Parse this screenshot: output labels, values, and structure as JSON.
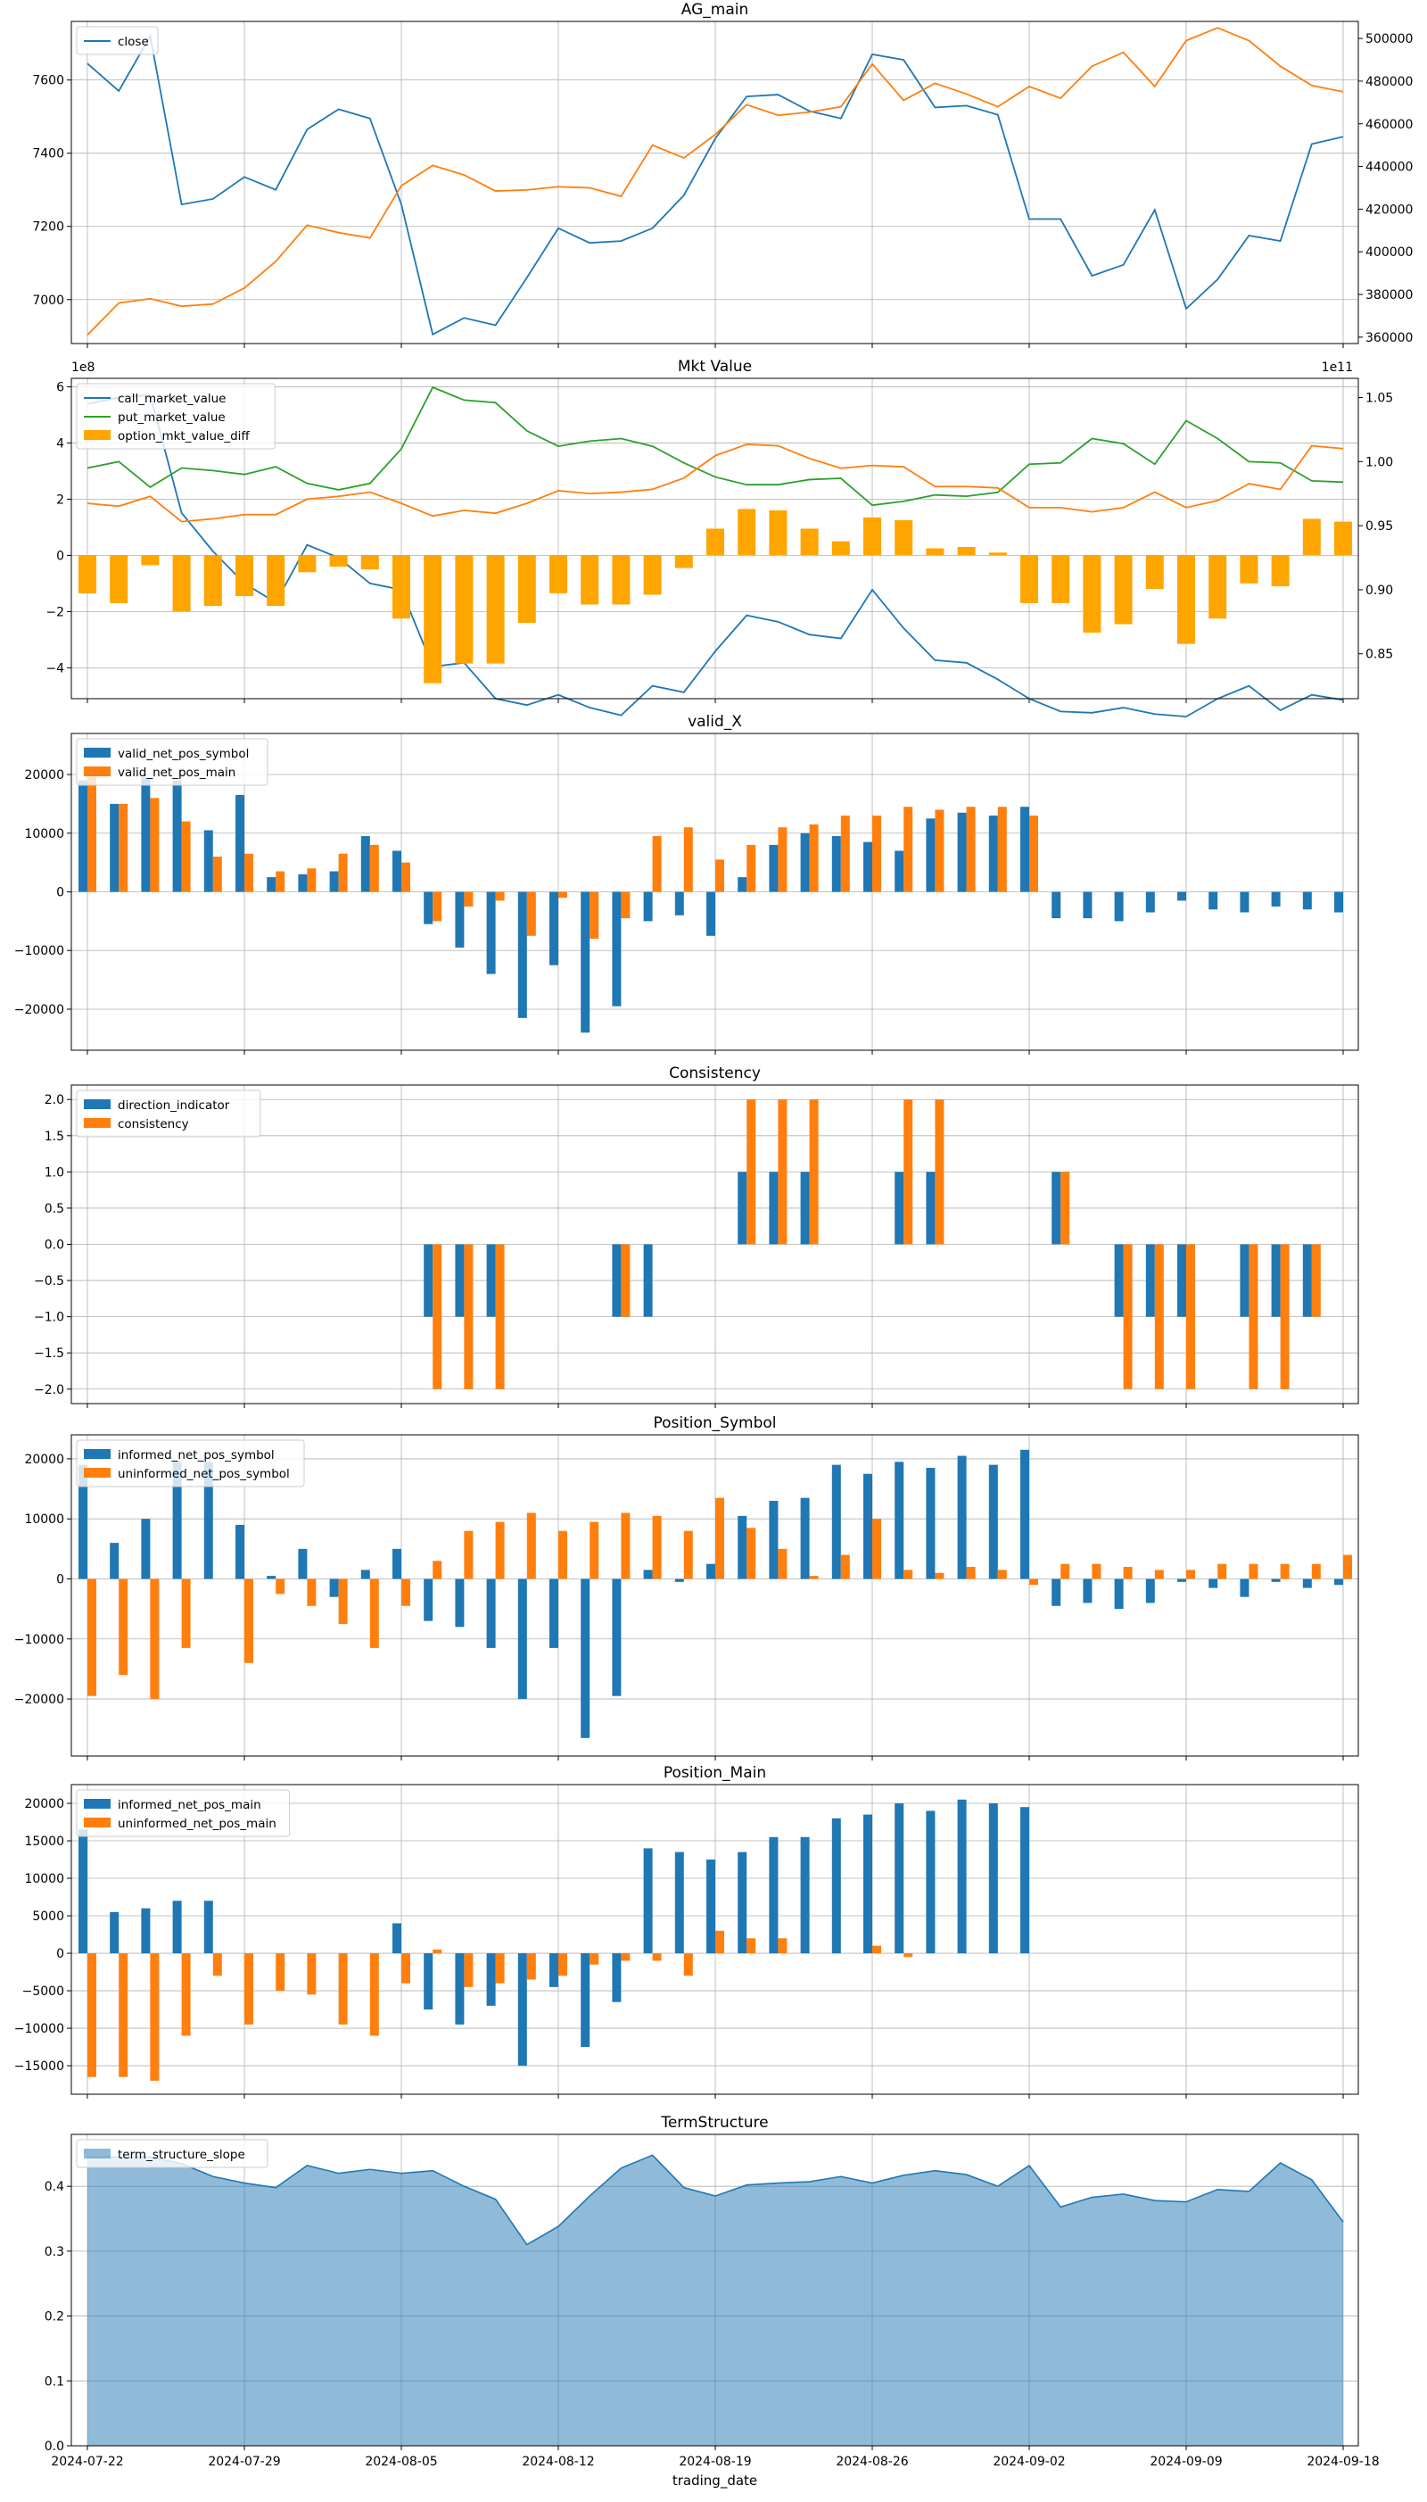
{
  "figure": {
    "xlabel": "trading_date",
    "x_tick_labels": [
      "2024-07-22",
      "2024-07-29",
      "2024-08-05",
      "2024-08-12",
      "2024-08-19",
      "2024-08-26",
      "2024-09-02",
      "2024-09-09",
      "2024-09-18"
    ]
  },
  "chart_data": [
    {
      "type": "line",
      "title": "AG_main",
      "x": [
        "2024-07-22",
        "2024-07-23",
        "2024-07-24",
        "2024-07-25",
        "2024-07-26",
        "2024-07-29",
        "2024-07-30",
        "2024-07-31",
        "2024-08-01",
        "2024-08-02",
        "2024-08-05",
        "2024-08-06",
        "2024-08-07",
        "2024-08-08",
        "2024-08-09",
        "2024-08-12",
        "2024-08-13",
        "2024-08-14",
        "2024-08-15",
        "2024-08-16",
        "2024-08-19",
        "2024-08-20",
        "2024-08-21",
        "2024-08-22",
        "2024-08-23",
        "2024-08-26",
        "2024-08-27",
        "2024-08-28",
        "2024-08-29",
        "2024-08-30",
        "2024-09-02",
        "2024-09-03",
        "2024-09-04",
        "2024-09-05",
        "2024-09-06",
        "2024-09-09",
        "2024-09-10",
        "2024-09-11",
        "2024-09-12",
        "2024-09-13",
        "2024-09-18"
      ],
      "series": [
        {
          "name": "close",
          "axis": "left",
          "color": "#1f77b4",
          "values": [
            7645,
            7570,
            7720,
            7260,
            7275,
            7335,
            7300,
            7465,
            7520,
            7495,
            7260,
            6905,
            6950,
            6930,
            7060,
            7195,
            7155,
            7160,
            7195,
            7285,
            7440,
            7555,
            7560,
            7515,
            7495,
            7670,
            7655,
            7525,
            7530,
            7505,
            7220,
            7220,
            7065,
            7095,
            7245,
            6975,
            7055,
            7175,
            7160,
            7425,
            7445
          ]
        },
        {
          "name": "",
          "axis": "right",
          "color": "#ff7f0e",
          "values": [
            361000,
            376000,
            378000,
            374500,
            375500,
            383000,
            395500,
            412500,
            409000,
            406500,
            431000,
            440500,
            436000,
            428500,
            429000,
            430500,
            430000,
            426000,
            450000,
            444000,
            455000,
            469000,
            464000,
            465500,
            468000,
            488000,
            471000,
            479000,
            474000,
            468000,
            477500,
            472000,
            487000,
            493500,
            477500,
            499000,
            505000,
            499000,
            487000,
            478000,
            475000
          ]
        }
      ],
      "ylim_left": [
        6880,
        7760
      ],
      "ylim_right": [
        357000,
        508000
      ],
      "left_ticks": [
        "7000",
        "7200",
        "7400",
        "7600"
      ],
      "left_tick_values": [
        7000,
        7200,
        7400,
        7600
      ],
      "right_ticks": [
        "360000",
        "380000",
        "400000",
        "420000",
        "440000",
        "460000",
        "480000",
        "500000"
      ],
      "right_tick_values": [
        360000,
        380000,
        400000,
        420000,
        440000,
        460000,
        480000,
        500000
      ],
      "legend": "upper-left",
      "grid": true
    },
    {
      "type": "bar+line",
      "title": "Mkt Value",
      "left_offset_label": "1e8",
      "right_offset_label": "1e11",
      "series": [
        {
          "name": "call_market_value",
          "kind": "line",
          "axis": "right",
          "color": "#1f77b4",
          "values": [
            1.045,
            1.05,
            1.052,
            0.96,
            0.93,
            0.905,
            0.89,
            0.935,
            0.925,
            0.905,
            0.9,
            0.84,
            0.843,
            0.815,
            0.81,
            0.818,
            0.808,
            0.802,
            0.825,
            0.82,
            0.852,
            0.88,
            0.875,
            0.865,
            0.862,
            0.9,
            0.87,
            0.845,
            0.843,
            0.83,
            0.815,
            0.805,
            0.804,
            0.808,
            0.803,
            0.801,
            0.815,
            0.825,
            0.806,
            0.818,
            0.814
          ]
        },
        {
          "name": "put_market_value",
          "kind": "line",
          "axis": "right",
          "color": "#2ca02c",
          "values": [
            0.995,
            1.0,
            0.98,
            0.995,
            0.993,
            0.99,
            0.996,
            0.983,
            0.978,
            0.983,
            1.01,
            1.058,
            1.048,
            1.046,
            1.024,
            1.012,
            1.016,
            1.018,
            1.012,
            0.999,
            0.988,
            0.982,
            0.982,
            0.986,
            0.987,
            0.966,
            0.969,
            0.974,
            0.973,
            0.976,
            0.998,
            0.999,
            1.018,
            1.014,
            0.998,
            1.032,
            1.018,
            1.0,
            0.999,
            0.985,
            0.984
          ]
        },
        {
          "name": "",
          "kind": "line",
          "axis": "left",
          "color": "#ff7f0e",
          "values": [
            1.85,
            1.75,
            2.1,
            1.2,
            1.3,
            1.45,
            1.45,
            2.0,
            2.1,
            2.25,
            1.85,
            1.4,
            1.6,
            1.5,
            1.85,
            2.3,
            2.2,
            2.25,
            2.35,
            2.75,
            3.55,
            3.95,
            3.9,
            3.45,
            3.1,
            3.2,
            3.15,
            2.45,
            2.45,
            2.4,
            1.7,
            1.7,
            1.55,
            1.7,
            2.25,
            1.7,
            1.95,
            2.55,
            2.35,
            3.9,
            3.8
          ]
        },
        {
          "name": "option_mkt_value_diff",
          "kind": "bar",
          "axis": "left",
          "color": "#ffa500",
          "values": [
            -1.35,
            -1.7,
            -0.35,
            -2.0,
            -1.8,
            -1.45,
            -1.8,
            -0.6,
            -0.4,
            -0.5,
            -2.25,
            -4.55,
            -3.85,
            -3.85,
            -2.4,
            -1.35,
            -1.75,
            -1.75,
            -1.4,
            -0.45,
            0.95,
            1.65,
            1.6,
            0.95,
            0.5,
            1.35,
            1.25,
            0.25,
            0.3,
            0.1,
            -1.7,
            -1.7,
            -2.75,
            -2.45,
            -1.2,
            -3.15,
            -2.25,
            -1.0,
            -1.1,
            1.3,
            1.2
          ]
        }
      ],
      "ylim_left": [
        -5.1,
        6.3
      ],
      "ylim_right": [
        0.815,
        1.065
      ],
      "left_ticks": [
        "−4",
        "−2",
        "0",
        "2",
        "4",
        "6"
      ],
      "left_tick_values": [
        -4,
        -2,
        0,
        2,
        4,
        6
      ],
      "right_ticks": [
        "0.85",
        "0.90",
        "0.95",
        "1.00",
        "1.05"
      ],
      "right_tick_values": [
        0.85,
        0.9,
        0.95,
        1.0,
        1.05
      ],
      "legend": "upper-left",
      "grid": true
    },
    {
      "type": "bar",
      "title": "valid_X",
      "series": [
        {
          "name": "valid_net_pos_symbol",
          "color": "#1f77b4",
          "values": [
            19000,
            15000,
            19500,
            19000,
            10500,
            16500,
            2500,
            3000,
            3500,
            9500,
            7000,
            -5500,
            -9500,
            -14000,
            -21500,
            -12500,
            -24000,
            -19500,
            -5000,
            -4000,
            -7500,
            2500,
            8000,
            10000,
            9500,
            8500,
            7000,
            12500,
            13500,
            13000,
            14500,
            -4500,
            -4500,
            -5000,
            -3500,
            -1500,
            -3000,
            -3500,
            -2500,
            -3000,
            -3500
          ]
        },
        {
          "name": "valid_net_pos_main",
          "color": "#ff7f0e",
          "values": [
            19500,
            15000,
            16000,
            12000,
            6000,
            6500,
            3500,
            4000,
            6500,
            8000,
            5000,
            -5000,
            -2500,
            -1500,
            -7500,
            -1000,
            -8000,
            -4500,
            9500,
            11000,
            5500,
            8000,
            11000,
            11500,
            13000,
            13000,
            14500,
            14000,
            14500,
            14500,
            13000,
            0,
            0,
            0,
            0,
            0,
            0,
            0,
            0,
            0,
            0
          ]
        }
      ],
      "ylim": [
        -27000,
        27000
      ],
      "ticks": [
        "−20000",
        "−10000",
        "0",
        "10000",
        "20000"
      ],
      "tick_values": [
        -20000,
        -10000,
        0,
        10000,
        20000
      ],
      "legend": "upper-left",
      "grid": true
    },
    {
      "type": "bar",
      "title": "Consistency",
      "series": [
        {
          "name": "direction_indicator",
          "color": "#1f77b4",
          "values": [
            0,
            0,
            0,
            0,
            0,
            0,
            0,
            0,
            0,
            0,
            0,
            -1,
            -1,
            -1,
            0,
            0,
            0,
            -1,
            -1,
            0,
            0,
            1,
            1,
            1,
            0,
            0,
            1,
            1,
            0,
            0,
            0,
            1,
            0,
            -1,
            -1,
            -1,
            0,
            -1,
            -1,
            -1,
            0
          ]
        },
        {
          "name": "consistency",
          "color": "#ff7f0e",
          "values": [
            0,
            0,
            0,
            0,
            0,
            0,
            0,
            0,
            0,
            0,
            0,
            -2,
            -2,
            -2,
            0,
            0,
            0,
            -1,
            0,
            0,
            0,
            2,
            2,
            2,
            0,
            0,
            2,
            2,
            0,
            0,
            0,
            1,
            0,
            -2,
            -2,
            -2,
            0,
            -2,
            -2,
            -1,
            0
          ]
        }
      ],
      "ylim": [
        -2.2,
        2.2
      ],
      "ticks": [
        "−2.0",
        "−1.5",
        "−1.0",
        "−0.5",
        "0.0",
        "0.5",
        "1.0",
        "1.5",
        "2.0"
      ],
      "tick_values": [
        -2.0,
        -1.5,
        -1.0,
        -0.5,
        0.0,
        0.5,
        1.0,
        1.5,
        2.0
      ],
      "legend": "upper-left",
      "grid": true
    },
    {
      "type": "bar",
      "title": "Position_Symbol",
      "series": [
        {
          "name": "informed_net_pos_symbol",
          "color": "#1f77b4",
          "values": [
            19000,
            6000,
            10000,
            19500,
            19500,
            9000,
            500,
            5000,
            -3000,
            1500,
            5000,
            -7000,
            -8000,
            -11500,
            -20000,
            -11500,
            -26500,
            -19500,
            1500,
            -500,
            2500,
            10500,
            13000,
            13500,
            19000,
            17500,
            19500,
            18500,
            20500,
            19000,
            21500,
            -4500,
            -4000,
            -5000,
            -4000,
            -500,
            -1500,
            -3000,
            -500,
            -1500,
            -1000
          ]
        },
        {
          "name": "uninformed_net_pos_symbol",
          "color": "#ff7f0e",
          "values": [
            -19500,
            -16000,
            -20000,
            -11500,
            0,
            -14000,
            -2500,
            -4500,
            -7500,
            -11500,
            -4500,
            3000,
            8000,
            9500,
            11000,
            8000,
            9500,
            11000,
            10500,
            8000,
            13500,
            8500,
            5000,
            500,
            4000,
            10000,
            1500,
            1000,
            2000,
            1500,
            -1000,
            2500,
            2500,
            2000,
            1500,
            1500,
            2500,
            2500,
            2500,
            2500,
            4000
          ]
        }
      ],
      "ylim": [
        -29500,
        24000
      ],
      "ticks": [
        "−20000",
        "−10000",
        "0",
        "10000",
        "20000"
      ],
      "tick_values": [
        -20000,
        -10000,
        0,
        10000,
        20000
      ],
      "legend": "upper-left",
      "grid": true
    },
    {
      "type": "bar",
      "title": "Position_Main",
      "series": [
        {
          "name": "informed_net_pos_main",
          "color": "#1f77b4",
          "values": [
            16500,
            5500,
            6000,
            7000,
            7000,
            0,
            0,
            0,
            0,
            0,
            4000,
            -7500,
            -9500,
            -7000,
            -15000,
            -4500,
            -12500,
            -6500,
            14000,
            13500,
            12500,
            13500,
            15500,
            15500,
            18000,
            18500,
            20000,
            19000,
            20500,
            20000,
            19500,
            0,
            0,
            0,
            0,
            0,
            0,
            0,
            0,
            0,
            0
          ]
        },
        {
          "name": "uninformed_net_pos_main",
          "color": "#ff7f0e",
          "values": [
            -16500,
            -16500,
            -17000,
            -11000,
            -3000,
            -9500,
            -5000,
            -5500,
            -9500,
            -11000,
            -4000,
            500,
            -4500,
            -4000,
            -3500,
            -3000,
            -1500,
            -1000,
            -1000,
            -3000,
            3000,
            2000,
            2000,
            0,
            0,
            1000,
            -500,
            0,
            0,
            0,
            0,
            0,
            0,
            0,
            0,
            0,
            0,
            0,
            0,
            0,
            0
          ]
        }
      ],
      "ylim": [
        -18800,
        22500
      ],
      "ticks": [
        "−15000",
        "−10000",
        "−5000",
        "0",
        "5000",
        "10000",
        "15000",
        "20000"
      ],
      "tick_values": [
        -15000,
        -10000,
        -5000,
        0,
        5000,
        10000,
        15000,
        20000
      ],
      "legend": "upper-left",
      "grid": true
    },
    {
      "type": "area",
      "title": "TermStructure",
      "series": [
        {
          "name": "term_structure_slope",
          "color": "#1f77b4",
          "values": [
            0.445,
            0.445,
            0.445,
            0.435,
            0.415,
            0.405,
            0.398,
            0.432,
            0.42,
            0.426,
            0.42,
            0.424,
            0.4,
            0.38,
            0.31,
            0.338,
            0.385,
            0.428,
            0.448,
            0.398,
            0.385,
            0.402,
            0.405,
            0.407,
            0.415,
            0.405,
            0.417,
            0.424,
            0.418,
            0.4,
            0.432,
            0.368,
            0.383,
            0.388,
            0.378,
            0.376,
            0.395,
            0.392,
            0.436,
            0.41,
            0.345
          ]
        }
      ],
      "ylim": [
        0.0,
        0.48
      ],
      "ticks": [
        "0.0",
        "0.1",
        "0.2",
        "0.3",
        "0.4"
      ],
      "tick_values": [
        0.0,
        0.1,
        0.2,
        0.3,
        0.4
      ],
      "legend": "upper-left",
      "grid": true
    }
  ]
}
